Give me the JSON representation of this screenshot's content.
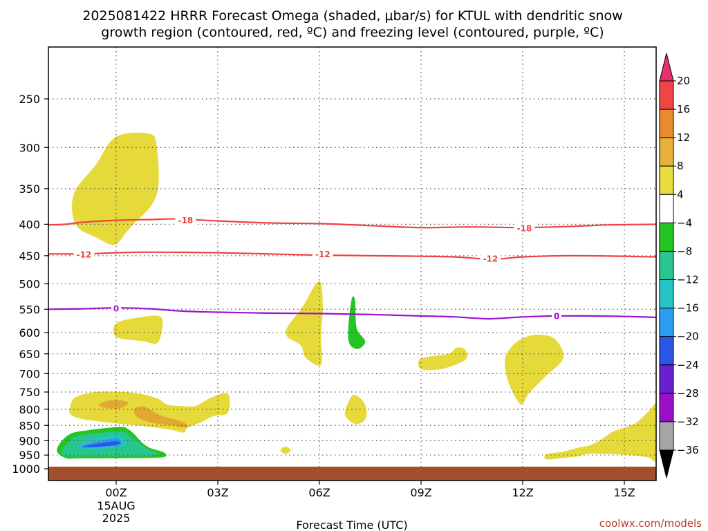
{
  "chart_data": {
    "type": "heatmap",
    "title_line1": "2025081422 HRRR Forecast Omega (shaded, μbar/s) for KTUL with dendritic snow",
    "title_line2": "growth region (contoured, red, ºC) and freezing level (contoured, purple, ºC)",
    "xlabel": "Forecast Time (UTC)",
    "credit": "coolwx.com/models",
    "x_range_hours": [
      -1.99,
      16
    ],
    "y_range_mb": [
      200,
      1025
    ],
    "x_ticks": [
      {
        "hour": 0,
        "label": "00Z",
        "sub1": "15AUG",
        "sub2": "2025"
      },
      {
        "hour": 3,
        "label": "03Z"
      },
      {
        "hour": 6,
        "label": "06Z"
      },
      {
        "hour": 9,
        "label": "09Z"
      },
      {
        "hour": 12,
        "label": "12Z"
      },
      {
        "hour": 15,
        "label": "15Z"
      }
    ],
    "y_ticks": [
      250,
      300,
      350,
      400,
      450,
      500,
      550,
      600,
      650,
      700,
      750,
      800,
      850,
      900,
      950,
      1000
    ],
    "colorbar": {
      "levels": [
        "20",
        "16",
        "12",
        "8",
        "4",
        "−4",
        "−8",
        "−12",
        "−16",
        "−20",
        "−24",
        "−28",
        "−32",
        "−36"
      ],
      "colors": [
        "#e8306e",
        "#f04545",
        "#ea8a2f",
        "#e6b23a",
        "#e8dc40",
        "#ffffff",
        "#22c522",
        "#28c58e",
        "#26c4c4",
        "#2b9cf0",
        "#2a56e6",
        "#6a1fd0",
        "#9b0fc8",
        "#a6a6a6",
        "#000000"
      ]
    },
    "omega_regions": [
      {
        "value": 4,
        "color": "#e6da3a",
        "points": [
          [
            -1.25,
            357
          ],
          [
            -0.6,
            320
          ],
          [
            0,
            288
          ],
          [
            1,
            285
          ],
          [
            1.2,
            300
          ],
          [
            1.25,
            345
          ],
          [
            1.05,
            372
          ],
          [
            0.55,
            398
          ],
          [
            0.3,
            412
          ],
          [
            -0.05,
            432
          ],
          [
            -0.6,
            420
          ],
          [
            -1.2,
            400
          ]
        ]
      },
      {
        "value": 4,
        "color": "#e6da3a",
        "points": [
          [
            0,
            580
          ],
          [
            0.6,
            568
          ],
          [
            1.3,
            565
          ],
          [
            1.35,
            595
          ],
          [
            1.2,
            625
          ],
          [
            0.8,
            620
          ],
          [
            0,
            610
          ]
        ]
      },
      {
        "value": 4,
        "color": "#e6da3a",
        "points": [
          [
            -1.35,
            790
          ],
          [
            -1.2,
            765
          ],
          [
            -0.6,
            750
          ],
          [
            0.5,
            752
          ],
          [
            1.2,
            768
          ],
          [
            1.5,
            786
          ],
          [
            1.9,
            790
          ],
          [
            2.35,
            790
          ],
          [
            2.8,
            766
          ],
          [
            3.3,
            755
          ],
          [
            3.3,
            810
          ],
          [
            2.9,
            820
          ],
          [
            2.5,
            840
          ],
          [
            2.1,
            858
          ],
          [
            2.0,
            873
          ],
          [
            1.6,
            864
          ],
          [
            1.0,
            855
          ],
          [
            0.4,
            848
          ],
          [
            -0.3,
            840
          ],
          [
            -1.0,
            830
          ],
          [
            -1.35,
            815
          ]
        ]
      },
      {
        "value": 8,
        "color": "#e1a930",
        "points": [
          [
            -0.5,
            785
          ],
          [
            -0.1,
            773
          ],
          [
            0.35,
            780
          ],
          [
            0.1,
            798
          ],
          [
            -0.35,
            795
          ]
        ]
      },
      {
        "value": 8,
        "color": "#e1a930",
        "points": [
          [
            0.55,
            798
          ],
          [
            0.85,
            793
          ],
          [
            1.3,
            818
          ],
          [
            1.95,
            838
          ],
          [
            2.1,
            857
          ],
          [
            1.6,
            850
          ],
          [
            1.0,
            840
          ],
          [
            0.6,
            822
          ]
        ]
      },
      {
        "value": 4,
        "color": "#e6da3a",
        "points": [
          [
            5.0,
            600
          ],
          [
            5.5,
            545
          ],
          [
            5.9,
            500
          ],
          [
            6.05,
            500
          ],
          [
            6.1,
            545
          ],
          [
            6.05,
            610
          ],
          [
            6.05,
            677
          ],
          [
            5.6,
            660
          ],
          [
            5.45,
            630
          ]
        ]
      },
      {
        "value": 4,
        "color": "#e6da3a",
        "points": [
          [
            6.75,
            810
          ],
          [
            6.9,
            770
          ],
          [
            7.05,
            758
          ],
          [
            7.3,
            778
          ],
          [
            7.4,
            810
          ],
          [
            7.3,
            838
          ],
          [
            7.05,
            845
          ],
          [
            6.85,
            832
          ]
        ]
      },
      {
        "value": 4,
        "color": "#e6da3a",
        "points": [
          [
            4.85,
            933
          ],
          [
            5.0,
            920
          ],
          [
            5.15,
            933
          ],
          [
            5.0,
            946
          ]
        ]
      },
      {
        "value": 4,
        "color": "#e6da3a",
        "points": [
          [
            9.0,
            662
          ],
          [
            9.8,
            650
          ],
          [
            10.05,
            635
          ],
          [
            10.3,
            640
          ],
          [
            10.3,
            665
          ],
          [
            9.6,
            688
          ],
          [
            9.0,
            688
          ]
        ]
      },
      {
        "value": 4,
        "color": "#e6da3a",
        "points": [
          [
            11.5,
            655
          ],
          [
            11.85,
            620
          ],
          [
            12.4,
            605
          ],
          [
            12.95,
            615
          ],
          [
            13.2,
            660
          ],
          [
            12.7,
            705
          ],
          [
            12.2,
            752
          ],
          [
            11.95,
            785
          ],
          [
            11.65,
            740
          ],
          [
            11.5,
            695
          ]
        ]
      },
      {
        "value": 4,
        "color": "#e6da3a",
        "points": [
          [
            14.4,
            890
          ],
          [
            14.7,
            868
          ],
          [
            15.3,
            845
          ],
          [
            15.7,
            808
          ],
          [
            16,
            788
          ],
          [
            16,
            963
          ],
          [
            15.7,
            958
          ],
          [
            15.2,
            950
          ],
          [
            14.35,
            946
          ],
          [
            13.9,
            946
          ],
          [
            13.6,
            955
          ],
          [
            13.2,
            960
          ],
          [
            12.7,
            965
          ],
          [
            12.7,
            947
          ],
          [
            13.2,
            938
          ],
          [
            13.6,
            925
          ],
          [
            14.0,
            915
          ]
        ]
      },
      {
        "value": -4,
        "color": "#22c522",
        "points": [
          [
            6.95,
            530
          ],
          [
            7.05,
            532
          ],
          [
            7.1,
            590
          ],
          [
            7.35,
            620
          ],
          [
            7.15,
            638
          ],
          [
            6.9,
            628
          ],
          [
            6.85,
            595
          ]
        ]
      },
      {
        "value": -4,
        "color": "#22c522",
        "points": [
          [
            -1.75,
            930
          ],
          [
            -1.4,
            880
          ],
          [
            -0.8,
            865
          ],
          [
            0.1,
            855
          ],
          [
            0.35,
            862
          ],
          [
            0.55,
            880
          ],
          [
            0.75,
            905
          ],
          [
            1.0,
            925
          ],
          [
            1.4,
            940
          ],
          [
            1.45,
            955
          ],
          [
            1.0,
            960
          ],
          [
            -1.0,
            962
          ],
          [
            -1.5,
            960
          ]
        ]
      },
      {
        "value": -8,
        "color": "#28c58e",
        "points": [
          [
            -1.6,
            935
          ],
          [
            -1.3,
            893
          ],
          [
            -0.8,
            878
          ],
          [
            0.1,
            870
          ],
          [
            0.4,
            883
          ],
          [
            0.7,
            910
          ],
          [
            0.95,
            930
          ],
          [
            1.2,
            943
          ],
          [
            0.9,
            953
          ],
          [
            -1.0,
            955
          ],
          [
            -1.5,
            952
          ]
        ]
      },
      {
        "value": -12,
        "color": "#26c4c4",
        "points": [
          [
            -1.1,
            918
          ],
          [
            -0.7,
            895
          ],
          [
            -0.2,
            885
          ],
          [
            0.1,
            883
          ],
          [
            0.25,
            895
          ],
          [
            0.25,
            915
          ],
          [
            -0.2,
            925
          ],
          [
            -0.8,
            930
          ]
        ]
      },
      {
        "value": -16,
        "color": "#2b9cf0",
        "points": [
          [
            -1.0,
            917
          ],
          [
            -0.5,
            901
          ],
          [
            0.0,
            893
          ],
          [
            0.15,
            903
          ],
          [
            0.1,
            915
          ],
          [
            -0.5,
            922
          ],
          [
            -0.9,
            924
          ]
        ]
      },
      {
        "value": -20,
        "color": "#2a56e6",
        "points": [
          [
            -1.0,
            920
          ],
          [
            -0.5,
            909
          ],
          [
            0.0,
            902
          ],
          [
            0.1,
            911
          ],
          [
            -0.3,
            919
          ],
          [
            -0.9,
            922
          ]
        ]
      }
    ],
    "contours": [
      {
        "level": "-18",
        "color": "#f04040",
        "points": [
          [
            -1.99,
            401
          ],
          [
            -1.5,
            400
          ],
          [
            -1,
            397
          ],
          [
            0,
            394
          ],
          [
            1,
            393
          ],
          [
            1.8,
            392
          ],
          [
            3,
            395
          ],
          [
            4.5,
            398
          ],
          [
            6,
            399
          ],
          [
            7.5,
            402
          ],
          [
            9,
            405
          ],
          [
            10.5,
            404
          ],
          [
            12,
            405
          ],
          [
            13.5,
            403
          ],
          [
            14.5,
            401
          ],
          [
            16,
            400
          ]
        ],
        "labels": [
          {
            "x": 2.05,
            "y": 394
          },
          {
            "x": 12.05,
            "y": 406
          }
        ]
      },
      {
        "level": "-12",
        "color": "#f04040",
        "points": [
          [
            -1.99,
            447
          ],
          [
            -1,
            447
          ],
          [
            0,
            445
          ],
          [
            1,
            444
          ],
          [
            3,
            445
          ],
          [
            4.5,
            447
          ],
          [
            6,
            449
          ],
          [
            7.5,
            450
          ],
          [
            9,
            451
          ],
          [
            10,
            452
          ],
          [
            11.1,
            456
          ],
          [
            12,
            452
          ],
          [
            13.5,
            450
          ],
          [
            16,
            452
          ]
        ],
        "labels": [
          {
            "x": -0.95,
            "y": 448
          },
          {
            "x": 6.1,
            "y": 447
          },
          {
            "x": 11.05,
            "y": 455
          }
        ]
      },
      {
        "level": "0",
        "color": "#9b10d0",
        "points": [
          [
            -1.99,
            550
          ],
          [
            -1,
            549
          ],
          [
            0,
            547
          ],
          [
            1,
            549
          ],
          [
            2,
            554
          ],
          [
            3,
            556
          ],
          [
            4.5,
            558
          ],
          [
            6,
            559
          ],
          [
            7.5,
            561
          ],
          [
            9,
            564
          ],
          [
            10,
            566
          ],
          [
            11,
            570
          ],
          [
            12,
            566
          ],
          [
            13,
            564
          ],
          [
            14,
            564
          ],
          [
            15,
            565
          ],
          [
            16,
            567
          ]
        ],
        "labels": [
          {
            "x": 0,
            "y": 548
          },
          {
            "x": 13,
            "y": 564
          }
        ]
      }
    ],
    "ground": {
      "color": "#a24f2a",
      "top_mb": 992
    }
  }
}
